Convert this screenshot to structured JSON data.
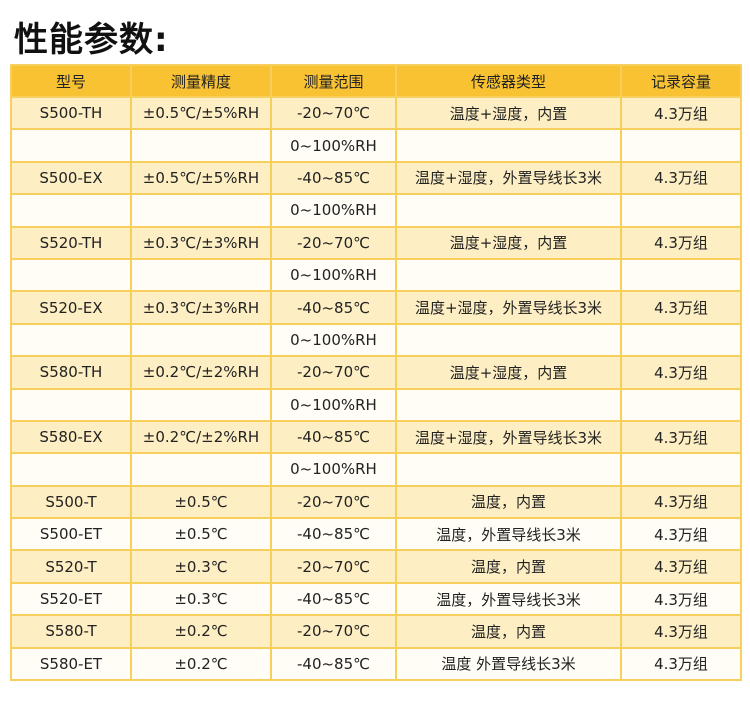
{
  "header": {
    "title": "性能参数:"
  },
  "table": {
    "columns": [
      "型号",
      "测量精度",
      "测量范围",
      "传感器类型",
      "记录容量"
    ],
    "rows": [
      {
        "model": "S500-TH",
        "accuracy": "±0.5℃/±5%RH",
        "range": "-20~70℃",
        "range2": "0~100%RH",
        "sensor": "温度+湿度，内置",
        "capacity": "4.3万组"
      },
      {
        "model": "S500-EX",
        "accuracy": "±0.5℃/±5%RH",
        "range": "-40~85℃",
        "range2": "0~100%RH",
        "sensor": "温度+湿度，外置导线长3米",
        "capacity": "4.3万组"
      },
      {
        "model": "S520-TH",
        "accuracy": "±0.3℃/±3%RH",
        "range": "-20~70℃",
        "range2": "0~100%RH",
        "sensor": "温度+湿度，内置",
        "capacity": "4.3万组"
      },
      {
        "model": "S520-EX",
        "accuracy": "±0.3℃/±3%RH",
        "range": "-40~85℃",
        "range2": "0~100%RH",
        "sensor": "温度+湿度，外置导线长3米",
        "capacity": "4.3万组"
      },
      {
        "model": "S580-TH",
        "accuracy": "±0.2℃/±2%RH",
        "range": "-20~70℃",
        "range2": "0~100%RH",
        "sensor": "温度+湿度，内置",
        "capacity": "4.3万组"
      },
      {
        "model": "S580-EX",
        "accuracy": "±0.2℃/±2%RH",
        "range": "-40~85℃",
        "range2": "0~100%RH",
        "sensor": "温度+湿度，外置导线长3米",
        "capacity": "4.3万组"
      },
      {
        "model": "S500-T",
        "accuracy": "±0.5℃",
        "range": "-20~70℃",
        "sensor": "温度，内置",
        "capacity": "4.3万组"
      },
      {
        "model": "S500-ET",
        "accuracy": "±0.5℃",
        "range": "-40~85℃",
        "sensor": "温度，外置导线长3米",
        "capacity": "4.3万组"
      },
      {
        "model": "S520-T",
        "accuracy": "±0.3℃",
        "range": "-20~70℃",
        "sensor": "温度，内置",
        "capacity": "4.3万组"
      },
      {
        "model": "S520-ET",
        "accuracy": "±0.3℃",
        "range": "-40~85℃",
        "sensor": "温度，外置导线长3米",
        "capacity": "4.3万组"
      },
      {
        "model": "S580-T",
        "accuracy": "±0.2℃",
        "range": "-20~70℃",
        "sensor": "温度，内置",
        "capacity": "4.3万组"
      },
      {
        "model": "S580-ET",
        "accuracy": "±0.2℃",
        "range": "-40~85℃",
        "sensor": "温度  外置导线长3米",
        "capacity": "4.3万组"
      }
    ]
  }
}
